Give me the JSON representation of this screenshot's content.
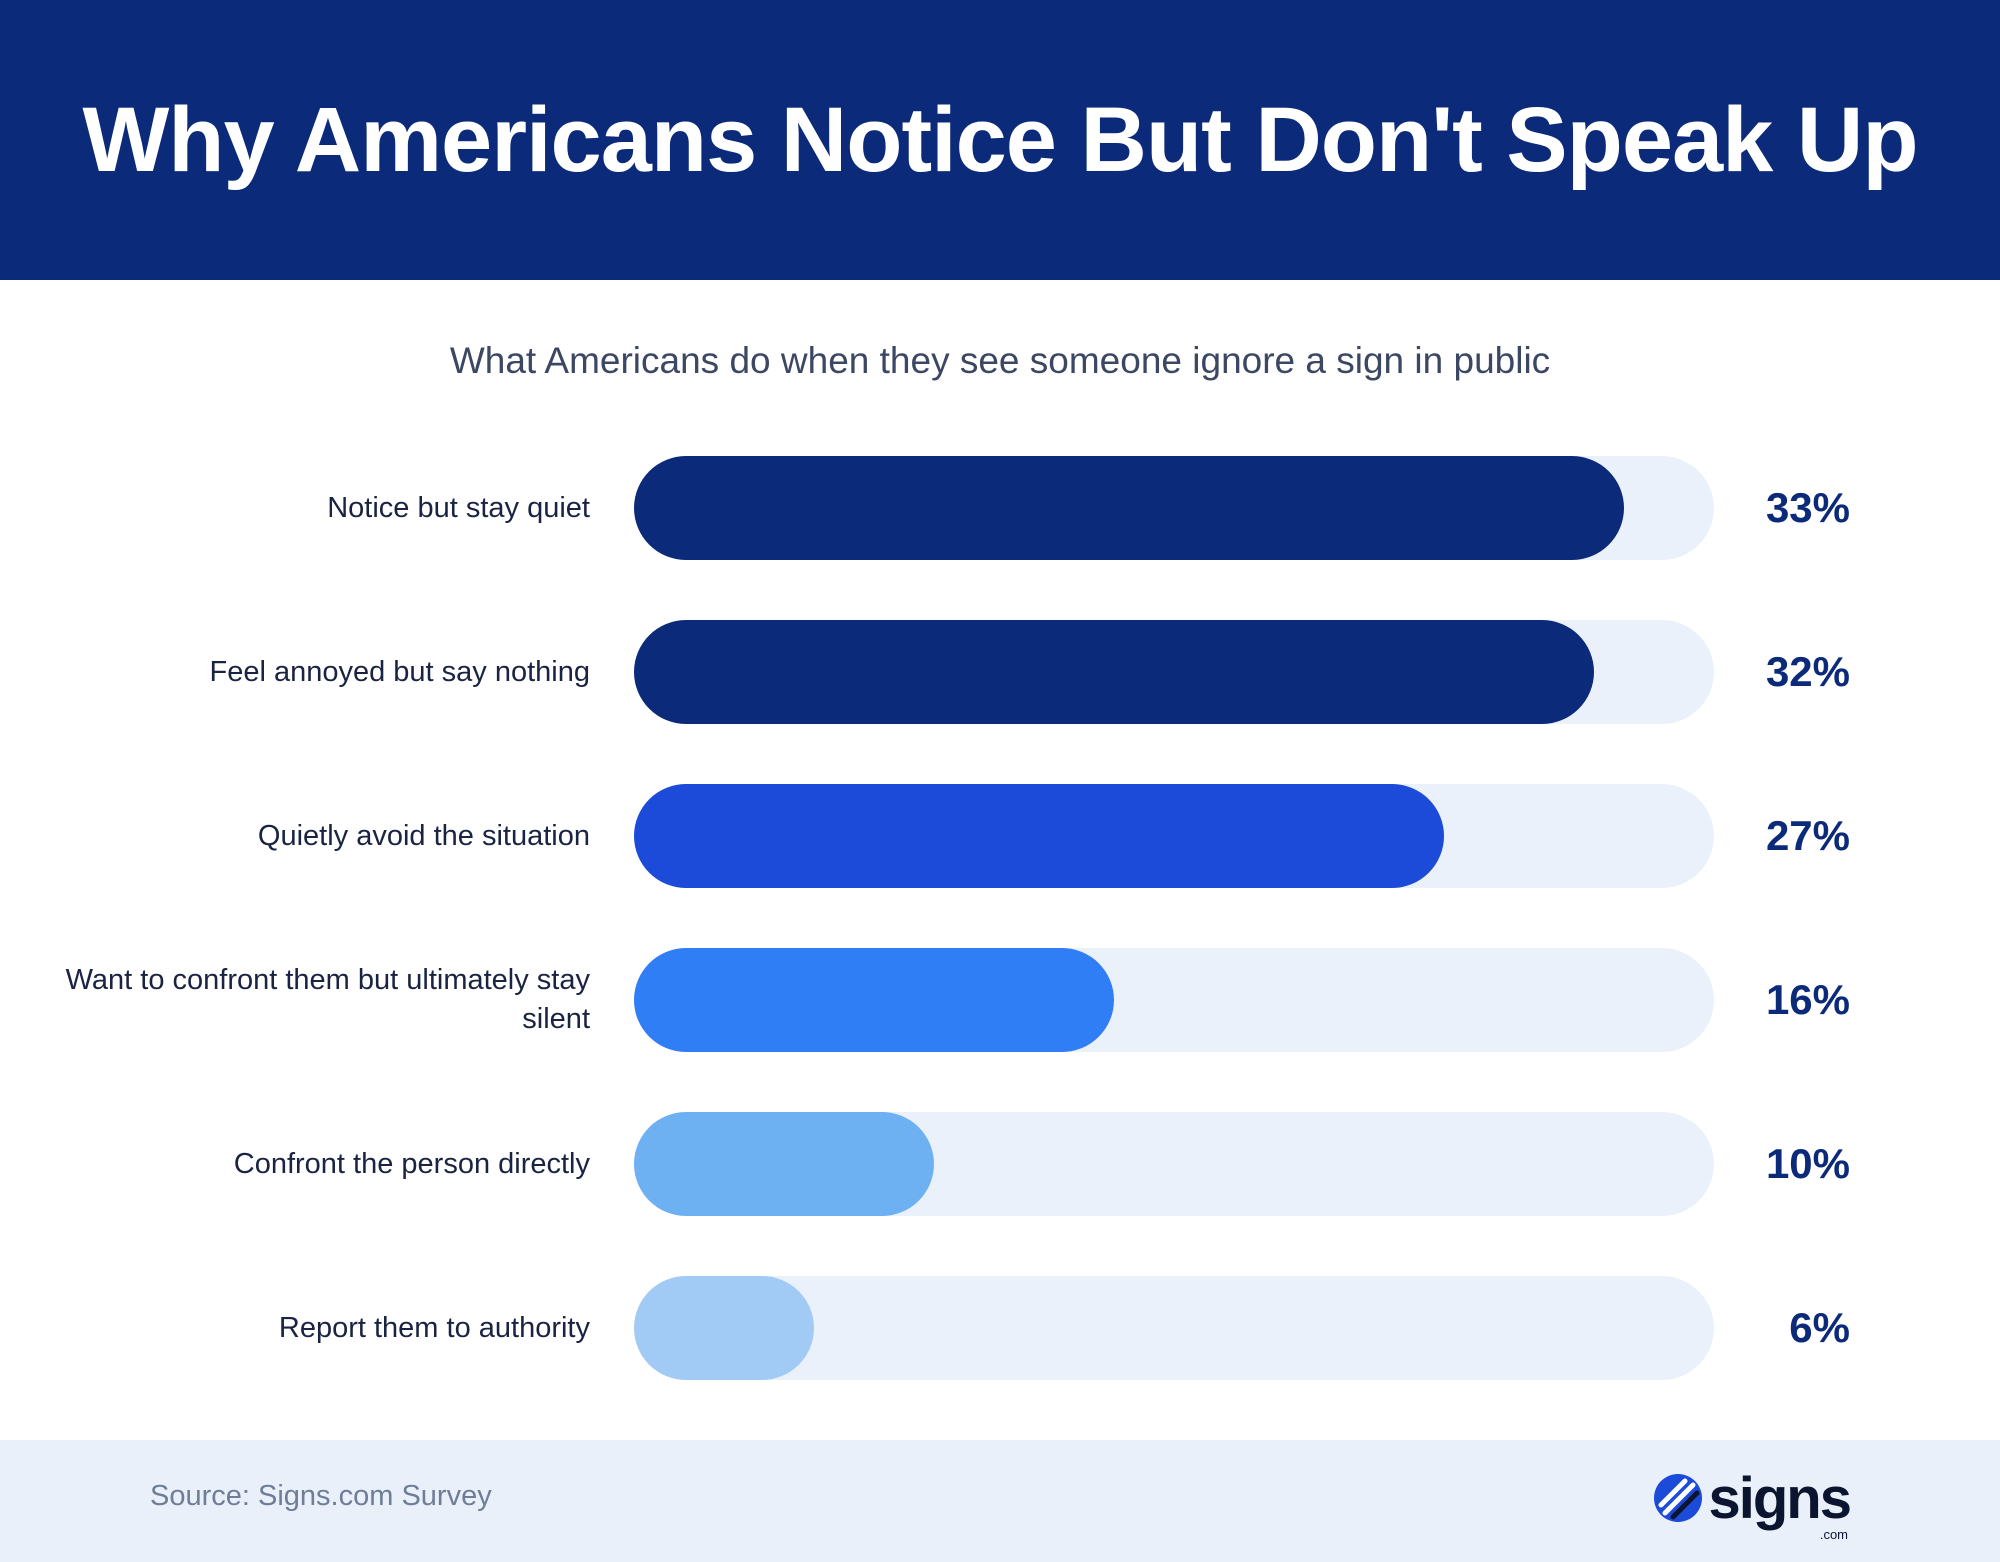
{
  "header": {
    "title": "Why Americans Notice But Don't Speak Up"
  },
  "subtitle": "What Americans do when they see someone ignore a sign in public",
  "chart_data": {
    "type": "bar",
    "orientation": "horizontal",
    "categories": [
      "Notice but stay quiet",
      "Feel annoyed but say nothing",
      "Quietly avoid the situation",
      "Want to confront them but ultimately stay silent",
      "Confront the person directly",
      "Report them to authority"
    ],
    "values": [
      33,
      32,
      27,
      16,
      10,
      6
    ],
    "value_labels": [
      "33%",
      "32%",
      "27%",
      "16%",
      "10%",
      "6%"
    ],
    "colors": [
      "#0c2a7a",
      "#0c2a7a",
      "#1b4bd8",
      "#2f7ef5",
      "#6db1f3",
      "#a1caf5"
    ],
    "track_color": "#ebf1fa",
    "xlim": [
      0,
      36
    ],
    "grid": false,
    "legend": "none"
  },
  "footer": {
    "source": "Source: Signs.com Survey",
    "brand": "signs",
    "brand_suffix": ".com"
  }
}
